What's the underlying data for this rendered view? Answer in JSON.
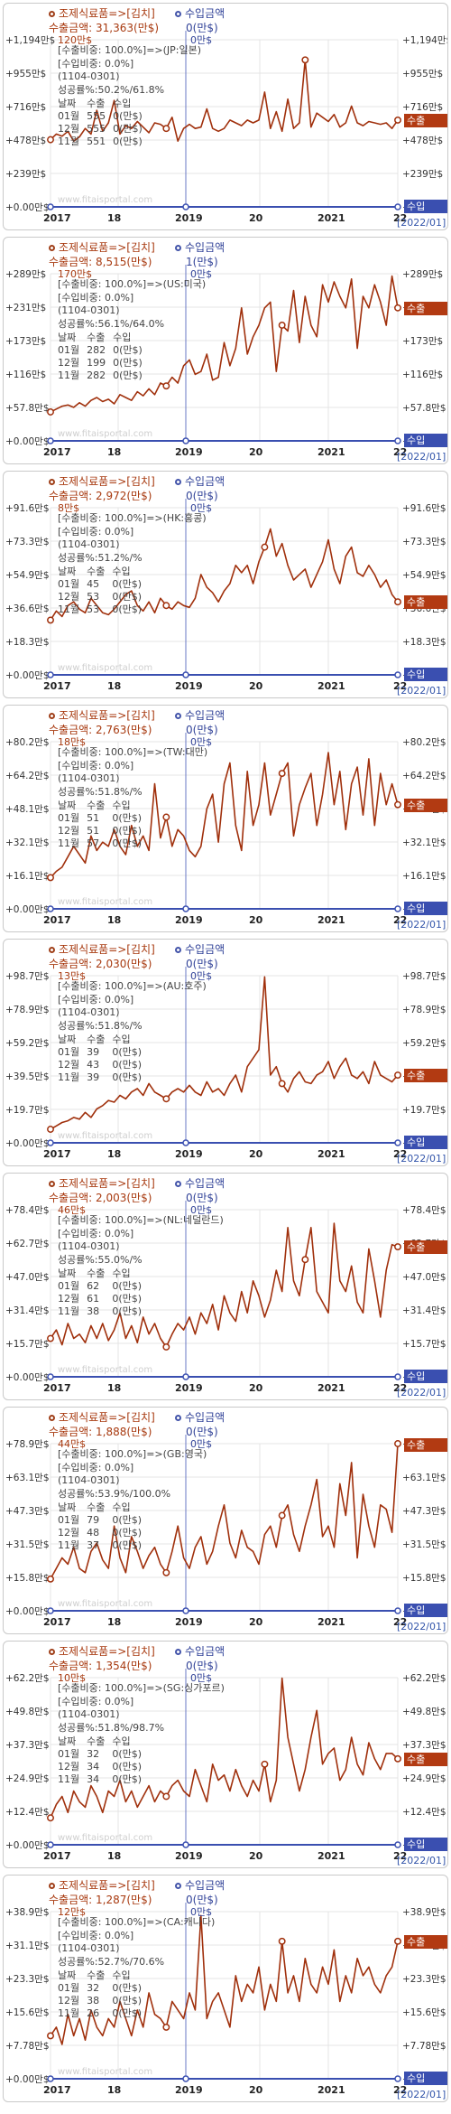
{
  "common": {
    "watermark": "www.fitaisportal.com",
    "export_tag": "수출",
    "import_tag": "수입",
    "period": "[2022/01]",
    "import_legend": "수입금액",
    "x_labels": [
      "2017",
      "18",
      "2019",
      "20",
      "2021",
      "22"
    ],
    "table_header": [
      "날짜",
      "수출",
      "수입"
    ],
    "months": [
      "01월",
      "12월",
      "11월"
    ]
  },
  "chart_data": [
    {
      "type": "line",
      "title": "조제식료품=>[김치]",
      "export_total": "수출금액: 31,363(만$)",
      "import_total": "0(만$)",
      "peak": "120만$",
      "import_peak": "0만$",
      "info": [
        "[수출비중: 100.0%]=>(JP:일본)",
        "[수입비중: 0.0%]",
        "(1104-0301)",
        "성공률%:50.2%/61.8%"
      ],
      "rows": [
        [
          "01월",
          "555",
          "0(만$)"
        ],
        [
          "12월",
          "555",
          "0(만$)"
        ],
        [
          "11월",
          "551",
          "0(만$)"
        ]
      ],
      "yticks": [
        "+1,194만$",
        "+955만$",
        "+716만$",
        "+478만$",
        "+239만$",
        "+0.00만$"
      ],
      "ymax": 1194,
      "values": [
        480,
        520,
        505,
        540,
        470,
        500,
        560,
        520,
        690,
        540,
        600,
        760,
        520,
        580,
        560,
        610,
        570,
        530,
        600,
        590,
        560,
        640,
        470,
        560,
        590,
        560,
        570,
        700,
        560,
        540,
        560,
        620,
        600,
        580,
        620,
        600,
        620,
        820,
        560,
        680,
        540,
        770,
        560,
        600,
        1050,
        570,
        670,
        640,
        610,
        660,
        570,
        600,
        720,
        600,
        580,
        610,
        600,
        590,
        600,
        560,
        620
      ],
      "markers": [
        0,
        20,
        44,
        60
      ]
    },
    {
      "type": "line",
      "title": "조제식료품=>[김치]",
      "export_total": "수출금액: 8,515(만$)",
      "import_total": "1(만$)",
      "peak": "170만$",
      "import_peak": "0만$",
      "info": [
        "[수출비중: 100.0%]=>(US:미국)",
        "[수입비중: 0.0%]",
        "(1104-0301)",
        "성공률%:56.1%/64.0%"
      ],
      "rows": [
        [
          "01월",
          "282",
          "0(만$)"
        ],
        [
          "12월",
          "199",
          "0(만$)"
        ],
        [
          "11월",
          "282",
          "0(만$)"
        ]
      ],
      "yticks": [
        "+289만$",
        "+231만$",
        "+173만$",
        "+116만$",
        "+57.8만$",
        "+0.00만$"
      ],
      "ymax": 289,
      "values": [
        50,
        55,
        60,
        62,
        58,
        66,
        60,
        70,
        75,
        68,
        72,
        64,
        80,
        75,
        70,
        85,
        78,
        90,
        80,
        100,
        95,
        110,
        100,
        130,
        140,
        115,
        120,
        150,
        105,
        110,
        170,
        130,
        160,
        230,
        150,
        180,
        200,
        230,
        240,
        120,
        200,
        190,
        260,
        170,
        250,
        200,
        180,
        270,
        240,
        275,
        250,
        230,
        280,
        160,
        250,
        230,
        270,
        240,
        200,
        285,
        230
      ],
      "markers": [
        0,
        20,
        40,
        60
      ]
    },
    {
      "type": "line",
      "title": "조제식료품=>[김치]",
      "export_total": "수출금액: 2,972(만$)",
      "import_total": "0(만$)",
      "peak": "8만$",
      "import_peak": "0만$",
      "info": [
        "[수출비중: 100.0%]=>(HK:홍콩)",
        "[수입비중: 0.0%]",
        "(1104-0301)",
        "성공률%:51.2%/%"
      ],
      "rows": [
        [
          "01월",
          "45",
          "0(만$)"
        ],
        [
          "12월",
          "53",
          "0(만$)"
        ],
        [
          "11월",
          "53",
          "0(만$)"
        ]
      ],
      "yticks": [
        "+91.6만$",
        "+73.3만$",
        "+54.9만$",
        "+36.6만$",
        "+18.3만$",
        "+0.00만$"
      ],
      "ymax": 91.6,
      "values": [
        30,
        35,
        32,
        38,
        40,
        36,
        34,
        42,
        38,
        34,
        33,
        36,
        40,
        44,
        46,
        38,
        35,
        40,
        34,
        42,
        38,
        36,
        40,
        38,
        37,
        42,
        55,
        48,
        45,
        40,
        46,
        50,
        60,
        56,
        60,
        50,
        62,
        70,
        80,
        65,
        72,
        60,
        52,
        55,
        58,
        48,
        55,
        62,
        74,
        58,
        50,
        65,
        70,
        56,
        54,
        60,
        55,
        48,
        52,
        44,
        40
      ],
      "markers": [
        0,
        20,
        37,
        60
      ]
    },
    {
      "type": "line",
      "title": "조제식료품=>[김치]",
      "export_total": "수출금액: 2,763(만$)",
      "import_total": "0(만$)",
      "peak": "18만$",
      "import_peak": "0만$",
      "info": [
        "[수출비중: 100.0%]=>(TW:대만)",
        "[수입비중: 0.0%]",
        "(1104-0301)",
        "성공률%:51.8%/%"
      ],
      "rows": [
        [
          "01월",
          "51",
          "0(만$)"
        ],
        [
          "12월",
          "51",
          "0(만$)"
        ],
        [
          "11월",
          "57",
          "0(만$)"
        ]
      ],
      "yticks": [
        "+80.2만$",
        "+64.2만$",
        "+48.1만$",
        "+32.1만$",
        "+16.1만$",
        "+0.00만$"
      ],
      "ymax": 80.2,
      "values": [
        15,
        18,
        20,
        25,
        30,
        26,
        22,
        35,
        28,
        32,
        30,
        38,
        30,
        26,
        40,
        30,
        35,
        28,
        60,
        34,
        44,
        30,
        38,
        35,
        28,
        25,
        30,
        48,
        55,
        32,
        60,
        70,
        40,
        28,
        66,
        40,
        50,
        70,
        45,
        55,
        65,
        70,
        35,
        50,
        58,
        65,
        40,
        55,
        75,
        50,
        66,
        38,
        60,
        68,
        45,
        72,
        40,
        65,
        50,
        60,
        50
      ],
      "markers": [
        0,
        20,
        40,
        60
      ]
    },
    {
      "type": "line",
      "title": "조제식료품=>[김치]",
      "export_total": "수출금액: 2,030(만$)",
      "import_total": "0(만$)",
      "peak": "13만$",
      "import_peak": "0만$",
      "info": [
        "[수출비중: 100.0%]=>(AU:호주)",
        "[수입비중: 0.0%]",
        "(1104-0301)",
        "성공률%:51.8%/%"
      ],
      "rows": [
        [
          "01월",
          "39",
          "0(만$)"
        ],
        [
          "12월",
          "43",
          "0(만$)"
        ],
        [
          "11월",
          "39",
          "0(만$)"
        ]
      ],
      "yticks": [
        "+98.7만$",
        "+78.9만$",
        "+59.2만$",
        "+39.5만$",
        "+19.7만$",
        "+0.00만$"
      ],
      "ymax": 98.7,
      "values": [
        8,
        10,
        12,
        13,
        15,
        14,
        18,
        15,
        20,
        22,
        25,
        24,
        28,
        26,
        30,
        32,
        28,
        35,
        30,
        28,
        26,
        30,
        32,
        30,
        34,
        30,
        28,
        36,
        30,
        32,
        28,
        35,
        40,
        30,
        45,
        50,
        55,
        98,
        40,
        45,
        35,
        30,
        38,
        42,
        36,
        35,
        40,
        42,
        48,
        38,
        45,
        50,
        40,
        38,
        42,
        35,
        48,
        40,
        38,
        36,
        40
      ],
      "markers": [
        0,
        20,
        40,
        60
      ]
    },
    {
      "type": "line",
      "title": "조제식료품=>[김치]",
      "export_total": "수출금액: 2,003(만$)",
      "import_total": "0(만$)",
      "peak": "46만$",
      "import_peak": "0만$",
      "info": [
        "[수출비중: 100.0%]=>(NL:네덜란드)",
        "[수입비중: 0.0%]",
        "(1104-0301)",
        "성공률%:55.0%/%"
      ],
      "rows": [
        [
          "01월",
          "62",
          "0(만$)"
        ],
        [
          "12월",
          "61",
          "0(만$)"
        ],
        [
          "11월",
          "38",
          "0(만$)"
        ]
      ],
      "yticks": [
        "+78.4만$",
        "+62.7만$",
        "+47.0만$",
        "+31.4만$",
        "+15.7만$",
        "+0.00만$"
      ],
      "ymax": 78.4,
      "values": [
        18,
        22,
        15,
        25,
        18,
        20,
        16,
        24,
        18,
        25,
        17,
        22,
        30,
        18,
        24,
        16,
        28,
        20,
        25,
        18,
        14,
        20,
        25,
        22,
        28,
        20,
        30,
        25,
        34,
        22,
        38,
        30,
        26,
        40,
        30,
        45,
        38,
        28,
        36,
        50,
        40,
        70,
        45,
        38,
        55,
        70,
        40,
        35,
        30,
        72,
        45,
        40,
        52,
        35,
        30,
        60,
        45,
        28,
        50,
        62,
        61
      ],
      "markers": [
        0,
        20,
        44,
        60
      ]
    },
    {
      "type": "line",
      "title": "조제식료품=>[김치]",
      "export_total": "수출금액: 1,888(만$)",
      "import_total": "0(만$)",
      "peak": "44만$",
      "import_peak": "0만$",
      "info": [
        "[수출비중: 100.0%]=>(GB:영국)",
        "[수입비중: 0.0%]",
        "(1104-0301)",
        "성공률%:53.9%/100.0%"
      ],
      "rows": [
        [
          "01월",
          "79",
          "0(만$)"
        ],
        [
          "12월",
          "48",
          "0(만$)"
        ],
        [
          "11월",
          "37",
          "0(만$)"
        ]
      ],
      "yticks": [
        "+78.9만$",
        "+63.1만$",
        "+47.3만$",
        "+31.5만$",
        "+15.8만$",
        "+0.00만$"
      ],
      "ymax": 78.9,
      "values": [
        15,
        20,
        25,
        22,
        30,
        20,
        18,
        28,
        32,
        24,
        20,
        40,
        25,
        18,
        35,
        28,
        20,
        26,
        30,
        22,
        18,
        28,
        40,
        25,
        20,
        30,
        35,
        22,
        28,
        40,
        50,
        32,
        25,
        38,
        30,
        28,
        22,
        36,
        40,
        30,
        45,
        50,
        36,
        28,
        40,
        50,
        62,
        35,
        40,
        30,
        60,
        45,
        70,
        25,
        55,
        40,
        30,
        50,
        48,
        37,
        79
      ],
      "markers": [
        0,
        20,
        40,
        60
      ]
    },
    {
      "type": "line",
      "title": "조제식료품=>[김치]",
      "export_total": "수출금액: 1,354(만$)",
      "import_total": "0(만$)",
      "peak": "10만$",
      "import_peak": "0만$",
      "info": [
        "[수출비중: 100.0%]=>(SG:싱가포르)",
        "[수입비중: 0.0%]",
        "(1104-0301)",
        "성공률%:51.8%/98.7%"
      ],
      "rows": [
        [
          "01월",
          "32",
          "0(만$)"
        ],
        [
          "12월",
          "34",
          "0(만$)"
        ],
        [
          "11월",
          "34",
          "0(만$)"
        ]
      ],
      "yticks": [
        "+62.2만$",
        "+49.8만$",
        "+37.3만$",
        "+24.9만$",
        "+12.4만$",
        "+0.00만$"
      ],
      "ymax": 62.2,
      "values": [
        10,
        15,
        18,
        12,
        20,
        16,
        14,
        22,
        18,
        12,
        20,
        18,
        24,
        16,
        20,
        14,
        18,
        22,
        16,
        20,
        18,
        22,
        24,
        20,
        18,
        28,
        22,
        16,
        30,
        24,
        26,
        20,
        28,
        22,
        18,
        24,
        20,
        30,
        16,
        24,
        62,
        40,
        30,
        20,
        28,
        40,
        50,
        30,
        34,
        36,
        24,
        28,
        40,
        30,
        26,
        38,
        32,
        28,
        34,
        34,
        32
      ],
      "markers": [
        0,
        20,
        37,
        60
      ]
    },
    {
      "type": "line",
      "title": "조제식료품=>[김치]",
      "export_total": "수출금액: 1,287(만$)",
      "import_total": "0(만$)",
      "peak": "12만$",
      "import_peak": "0만$",
      "info": [
        "[수출비중: 100.0%]=>(CA:캐나다)",
        "[수입비중: 0.0%]",
        "(1104-0301)",
        "성공률%:52.7%/70.6%"
      ],
      "rows": [
        [
          "01월",
          "32",
          "0(만$)"
        ],
        [
          "12월",
          "38",
          "0(만$)"
        ],
        [
          "11월",
          "26",
          "0(만$)"
        ]
      ],
      "yticks": [
        "+38.9만$",
        "+31.1만$",
        "+23.3만$",
        "+15.6만$",
        "+7.78만$",
        "+0.00만$"
      ],
      "ymax": 38.9,
      "values": [
        10,
        12,
        8,
        15,
        10,
        14,
        9,
        16,
        12,
        10,
        14,
        12,
        18,
        14,
        10,
        16,
        12,
        20,
        15,
        14,
        12,
        18,
        16,
        14,
        20,
        16,
        38,
        14,
        18,
        20,
        16,
        12,
        24,
        18,
        22,
        20,
        26,
        16,
        22,
        18,
        32,
        20,
        24,
        18,
        28,
        22,
        20,
        26,
        22,
        30,
        18,
        24,
        20,
        28,
        24,
        26,
        22,
        20,
        24,
        26,
        32
      ],
      "markers": [
        0,
        20,
        40,
        60
      ]
    }
  ]
}
